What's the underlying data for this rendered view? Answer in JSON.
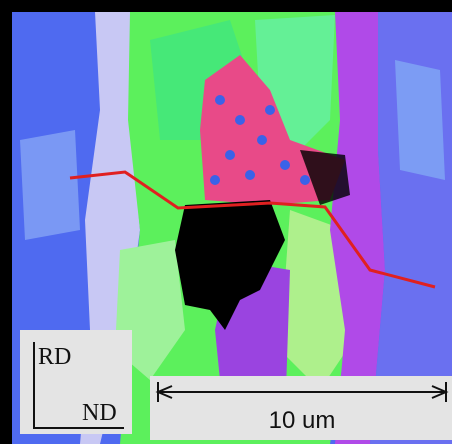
{
  "labels": {
    "rd": "RD",
    "nd": "ND",
    "scale": "10 um"
  }
}
